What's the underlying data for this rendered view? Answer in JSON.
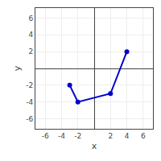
{
  "chart_data": {
    "type": "line",
    "x": [
      -3,
      -2,
      2,
      4
    ],
    "values": [
      -2,
      -4,
      -3,
      2
    ],
    "color": "#0000cc",
    "marker": "circle",
    "xlabel": "x",
    "ylabel": "y",
    "xlim": [
      -7.2,
      7.2
    ],
    "ylim": [
      -7.2,
      7.2
    ],
    "xticks": [
      -6,
      -4,
      -2,
      2,
      4,
      6
    ],
    "yticks": [
      -6,
      -4,
      -2,
      2,
      4,
      6
    ],
    "grid": true
  }
}
